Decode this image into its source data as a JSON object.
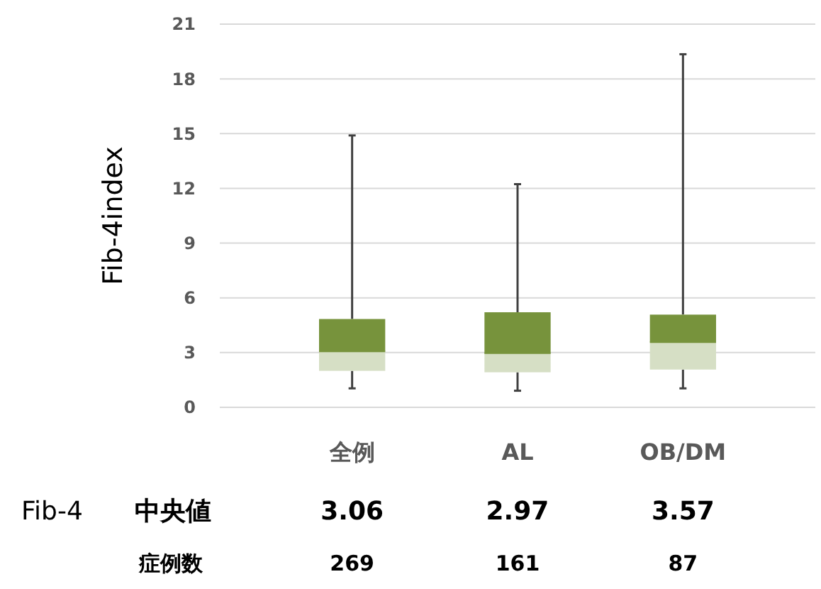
{
  "chart_data": {
    "type": "box",
    "ylabel": "Fib-4index",
    "categories": [
      "全例",
      "AL",
      "OB/DM"
    ],
    "series": [
      {
        "color": "#77933c",
        "boxes": [
          {
            "low": 1.04,
            "q1": 2.0,
            "median": 3.06,
            "q3": 4.84,
            "high": 14.9
          },
          {
            "low": 0.91,
            "q1": 1.92,
            "median": 2.97,
            "q3": 5.21,
            "high": 12.23
          },
          {
            "low": 1.04,
            "q1": 2.07,
            "median": 3.57,
            "q3": 5.08,
            "high": 19.35
          }
        ]
      }
    ],
    "ylim": [
      0,
      21
    ],
    "yticks": [
      0,
      3,
      6,
      9,
      12,
      15,
      18,
      21
    ],
    "grid": "y",
    "annotations": [
      "Fib-4",
      "中央値",
      "3.06",
      "2.97",
      "3.57",
      "症例数",
      "269",
      "161",
      "87"
    ]
  }
}
